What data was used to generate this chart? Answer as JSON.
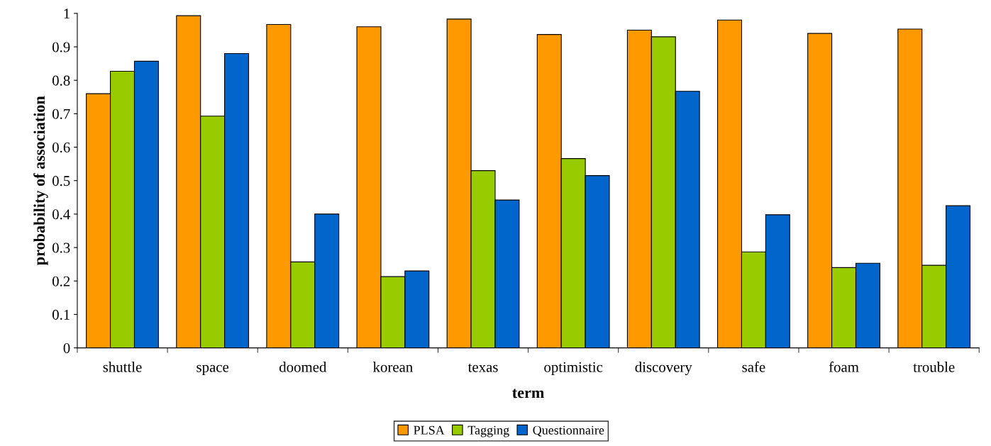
{
  "chart_data": {
    "type": "bar",
    "xlabel": "term",
    "ylabel": "probability of association",
    "categories": [
      "shuttle",
      "space",
      "doomed",
      "korean",
      "texas",
      "optimistic",
      "discovery",
      "safe",
      "foam",
      "trouble"
    ],
    "series": [
      {
        "name": "PLSA",
        "color": "#ff9900",
        "values": [
          0.76,
          0.993,
          0.967,
          0.96,
          0.983,
          0.937,
          0.95,
          0.98,
          0.94,
          0.953
        ]
      },
      {
        "name": "Tagging",
        "color": "#99cc00",
        "values": [
          0.827,
          0.693,
          0.257,
          0.213,
          0.53,
          0.566,
          0.93,
          0.287,
          0.24,
          0.247
        ]
      },
      {
        "name": "Questionnaire",
        "color": "#0066cc",
        "values": [
          0.857,
          0.88,
          0.4,
          0.23,
          0.442,
          0.515,
          0.767,
          0.398,
          0.253,
          0.425
        ]
      }
    ],
    "ylim": [
      0,
      1
    ],
    "yticks": [
      0,
      0.1,
      0.2,
      0.3,
      0.4,
      0.5,
      0.6,
      0.7,
      0.8,
      0.9,
      1
    ],
    "grid": false,
    "legend": "bottom"
  }
}
